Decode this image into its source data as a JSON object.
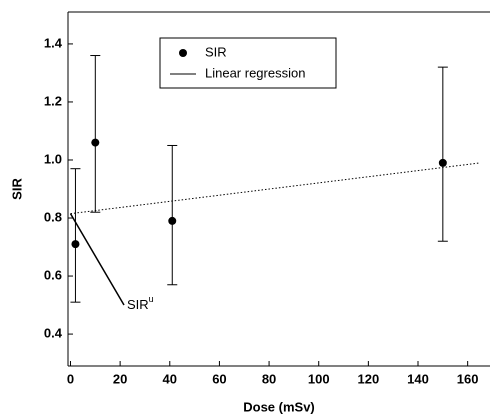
{
  "chart_data": {
    "type": "scatter",
    "x_label": "Dose (mSv)",
    "y_label": "SIR",
    "x": [
      2,
      10,
      41,
      150
    ],
    "values": [
      0.71,
      1.06,
      0.79,
      0.99
    ],
    "lower": [
      0.51,
      0.82,
      0.57,
      0.72
    ],
    "upper": [
      0.97,
      1.36,
      1.05,
      1.32
    ],
    "series_name": "SIR",
    "regression": {
      "name": "Linear regression",
      "x": [
        0,
        165
      ],
      "values": [
        0.815,
        0.99
      ]
    },
    "annotation": {
      "text": "SIR",
      "superscript": "u"
    },
    "xlim": [
      -1,
      169
    ],
    "ylim": [
      0.29,
      1.51
    ],
    "xticks": [
      0,
      20,
      40,
      60,
      80,
      100,
      120,
      140,
      160
    ],
    "yticks": [
      0.4,
      0.6,
      0.8,
      {
        "value": 1,
        "label": "1.0"
      },
      1.2,
      1.4
    ],
    "color": "#000000"
  }
}
